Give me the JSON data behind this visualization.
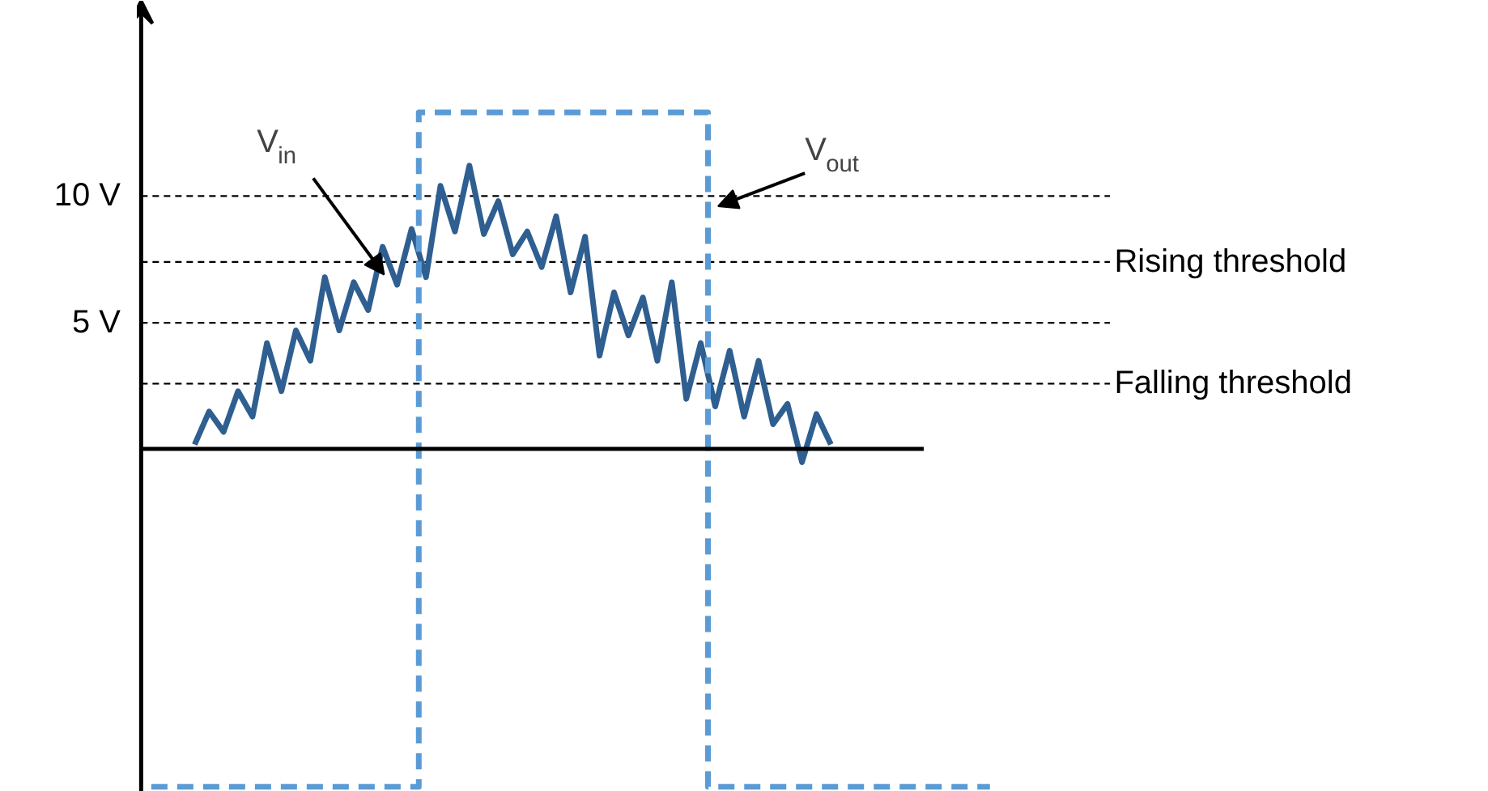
{
  "chart_data": {
    "type": "line",
    "categories": [
      null,
      null,
      null,
      null,
      null,
      null,
      null,
      null,
      null,
      null,
      null,
      null,
      null,
      null,
      null,
      null,
      null,
      null,
      null,
      null,
      null,
      null,
      null,
      null,
      null,
      null,
      null,
      null,
      null,
      null,
      null,
      null,
      null,
      null,
      null,
      null,
      null,
      null,
      null,
      null,
      null,
      null,
      null,
      null,
      null,
      null,
      null,
      null,
      null,
      null,
      null,
      null,
      null,
      null,
      null,
      null,
      null,
      null,
      null
    ],
    "ylim": [
      -13.5,
      17.7
    ],
    "yticks": [
      {
        "value": 5,
        "label": "5 V"
      },
      {
        "value": 10,
        "label": "10 V"
      }
    ],
    "tick_labels": "y",
    "series": [
      {
        "color": "#2f5f91",
        "line_style": "solid",
        "values": [
          null,
          null,
          null,
          0.2,
          1.5,
          0.7,
          2.3,
          1.3,
          4.2,
          2.3,
          4.7,
          3.5,
          6.8,
          4.7,
          6.6,
          5.5,
          8.0,
          6.5,
          8.7,
          6.8,
          10.4,
          8.6,
          11.2,
          8.5,
          9.8,
          7.7,
          8.6,
          7.2,
          9.2,
          6.2,
          8.4,
          3.7,
          6.2,
          4.5,
          6.0,
          3.5,
          6.6,
          2.0,
          4.2,
          1.7,
          3.9,
          1.3,
          3.5,
          1.0,
          1.8,
          -0.5,
          1.4,
          0.2,
          null,
          null,
          null,
          null,
          null,
          null,
          null,
          null,
          null,
          null,
          null
        ]
      },
      {
        "type": "step",
        "color": "#5b9bd5",
        "line_style": "dashed",
        "values": [
          -13.3,
          -13.3,
          -13.3,
          -13.3,
          -13.3,
          -13.3,
          -13.3,
          -13.3,
          -13.3,
          -13.3,
          -13.3,
          -13.3,
          -13.3,
          -13.3,
          -13.3,
          -13.3,
          -13.3,
          -13.3,
          -13.3,
          13.3,
          13.3,
          13.3,
          13.3,
          13.3,
          13.3,
          13.3,
          13.3,
          13.3,
          13.3,
          13.3,
          13.3,
          13.3,
          13.3,
          13.3,
          13.3,
          13.3,
          13.3,
          13.3,
          13.3,
          -13.3,
          -13.3,
          -13.3,
          -13.3,
          -13.3,
          -13.3,
          -13.3,
          -13.3,
          -13.3,
          -13.3,
          -13.3,
          -13.3,
          -13.3,
          -13.3,
          -13.3,
          -13.3,
          -13.3,
          -13.3,
          -13.3,
          -13.3
        ]
      }
    ],
    "ref_lines": [
      {
        "axis": "y",
        "value": 10,
        "color": "#000000",
        "line_style": "dashed"
      },
      {
        "axis": "y",
        "value": 5,
        "color": "#000000",
        "line_style": "dashed"
      },
      {
        "axis": "y",
        "value": 7.4,
        "label": "Rising threshold",
        "color": "#000000",
        "line_style": "dashed"
      },
      {
        "axis": "y",
        "value": 2.6,
        "label": "Falling threshold",
        "color": "#000000",
        "line_style": "dashed"
      }
    ],
    "annotations": [
      "V$_{in}$",
      "V$_{out}$"
    ]
  }
}
